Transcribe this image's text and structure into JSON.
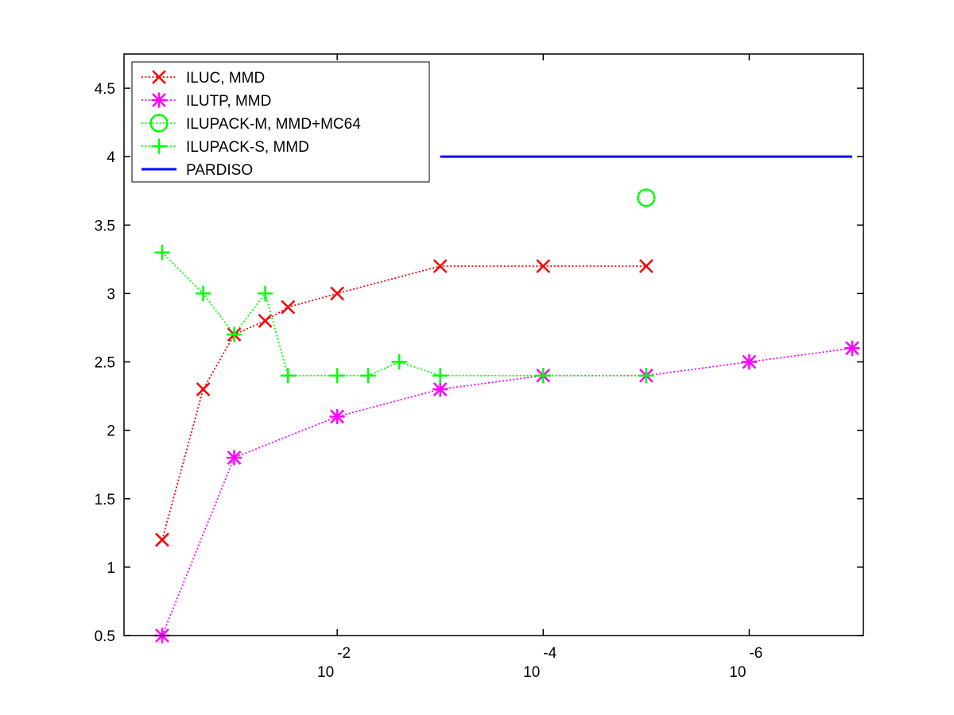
{
  "chart_data": {
    "type": "line",
    "x_scale": "log-reversed",
    "x_ticks": [
      {
        "value": 0.01,
        "base": "10",
        "exp": "-2"
      },
      {
        "value": 0.0001,
        "base": "10",
        "exp": "-4"
      },
      {
        "value": 1e-06,
        "base": "10",
        "exp": "-6"
      }
    ],
    "xlim": [
      1,
      1e-07
    ],
    "ylim": [
      0.5,
      4.75
    ],
    "y_ticks": [
      "0.5",
      "1",
      "1.5",
      "2",
      "2.5",
      "3",
      "3.5",
      "4",
      "4.5"
    ],
    "grid": false,
    "legend_position": "top-left",
    "series": [
      {
        "name": "ILUC, MMD",
        "color": "#ff0000",
        "marker": "x",
        "line": "dotted",
        "x": [
          0.5,
          0.2,
          0.1,
          0.05,
          0.03,
          0.01,
          0.001,
          0.0001,
          1e-05
        ],
        "y": [
          1.2,
          2.3,
          2.7,
          2.8,
          2.9,
          3.0,
          3.2,
          3.2,
          3.2
        ]
      },
      {
        "name": "ILUTP, MMD",
        "color": "#ff00ff",
        "marker": "asterisk",
        "line": "dotted",
        "x": [
          0.5,
          0.1,
          0.01,
          0.001,
          0.0001,
          1e-05,
          1e-06,
          1e-07
        ],
        "y": [
          0.5,
          1.8,
          2.1,
          2.3,
          2.4,
          2.4,
          2.5,
          2.6
        ]
      },
      {
        "name": "ILUPACK-M, MMD+MC64",
        "color": "#00ff00",
        "marker": "circle",
        "line": "dotted",
        "x": [
          1e-05
        ],
        "y": [
          3.7
        ]
      },
      {
        "name": "ILUPACK-S, MMD",
        "color": "#00ff00",
        "marker": "plus",
        "line": "dotted",
        "x": [
          0.5,
          0.2,
          0.1,
          0.05,
          0.03,
          0.01,
          0.005,
          0.0025,
          0.001,
          0.0001,
          1e-05
        ],
        "y": [
          3.3,
          3.0,
          2.7,
          3.0,
          2.4,
          2.4,
          2.4,
          2.5,
          2.4,
          2.4,
          2.4
        ]
      },
      {
        "name": "PARDISO",
        "color": "#0000ff",
        "marker": "none",
        "line": "solid",
        "x": [
          0.001,
          1e-07
        ],
        "y": [
          4.0,
          4.0
        ]
      }
    ]
  }
}
